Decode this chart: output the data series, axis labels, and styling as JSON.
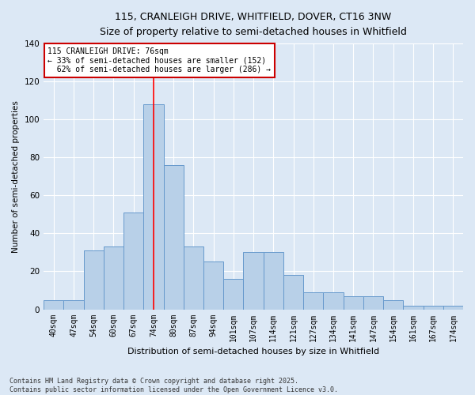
{
  "title_line1": "115, CRANLEIGH DRIVE, WHITFIELD, DOVER, CT16 3NW",
  "title_line2": "Size of property relative to semi-detached houses in Whitfield",
  "xlabel": "Distribution of semi-detached houses by size in Whitfield",
  "ylabel": "Number of semi-detached properties",
  "categories": [
    "40sqm",
    "47sqm",
    "54sqm",
    "60sqm",
    "67sqm",
    "74sqm",
    "80sqm",
    "87sqm",
    "94sqm",
    "101sqm",
    "107sqm",
    "114sqm",
    "121sqm",
    "127sqm",
    "134sqm",
    "141sqm",
    "147sqm",
    "154sqm",
    "161sqm",
    "167sqm",
    "174sqm"
  ],
  "values": [
    5,
    5,
    31,
    33,
    51,
    108,
    76,
    33,
    25,
    16,
    30,
    30,
    18,
    9,
    9,
    7,
    7,
    5,
    2,
    2,
    2
  ],
  "bar_color": "#b8d0e8",
  "bar_edge_color": "#6699cc",
  "highlight_label": "115 CRANLEIGH DRIVE: 76sqm",
  "pct_smaller": 33,
  "n_smaller": 152,
  "pct_larger": 62,
  "n_larger": 286,
  "red_line_index": 5,
  "annotation_box_color": "#cc0000",
  "background_color": "#dce8f5",
  "plot_bg_color": "#dce8f5",
  "ylim": [
    0,
    140
  ],
  "yticks": [
    0,
    20,
    40,
    60,
    80,
    100,
    120,
    140
  ],
  "footer_line1": "Contains HM Land Registry data © Crown copyright and database right 2025.",
  "footer_line2": "Contains public sector information licensed under the Open Government Licence v3.0."
}
